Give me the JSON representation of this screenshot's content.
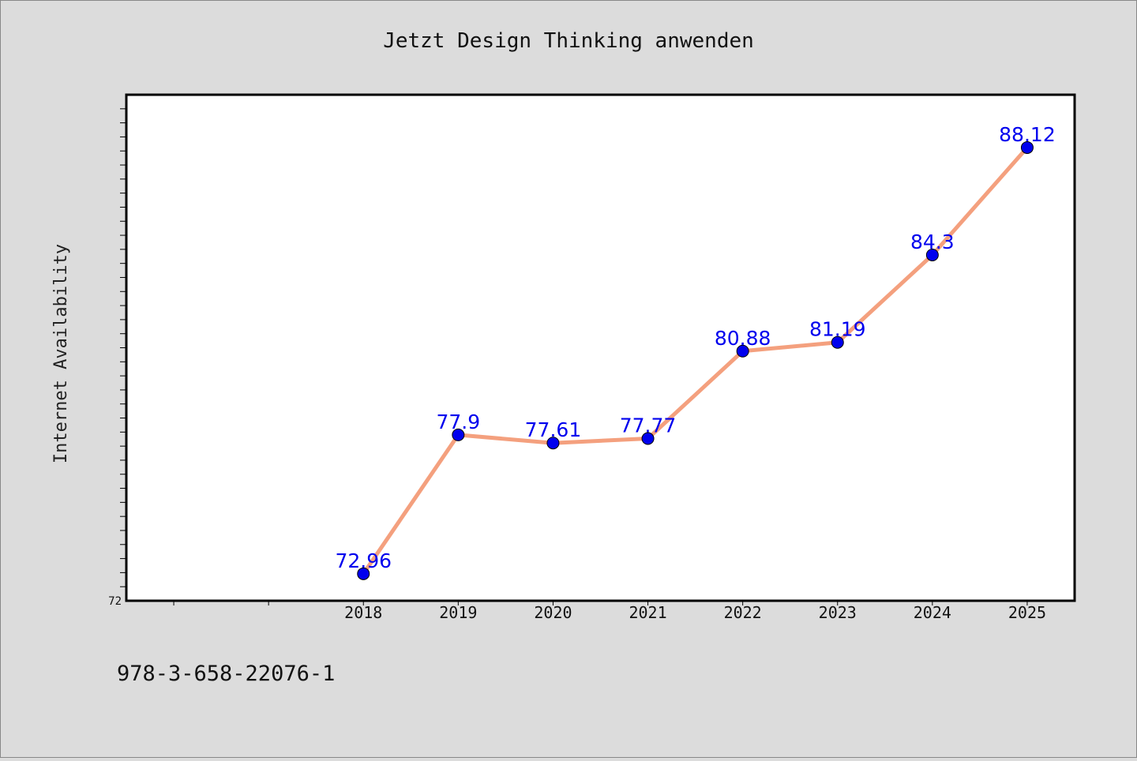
{
  "page": {
    "background": "#dcdcdc",
    "isbn": "978-3-658-22076-1"
  },
  "chart_data": {
    "type": "line",
    "title": "Jetzt Design Thinking anwenden",
    "xlabel": "",
    "ylabel": "Internet Availability",
    "x": [
      "2018",
      "2019",
      "2020",
      "2021",
      "2022",
      "2023",
      "2024",
      "2025"
    ],
    "series": [
      {
        "values": [
          72.96,
          77.9,
          77.61,
          77.77,
          80.88,
          81.19,
          84.3,
          88.12
        ],
        "labels": [
          "72.96",
          "77.9",
          "77.61",
          "77.77",
          "80.88",
          "81.19",
          "84.3",
          "88.12"
        ],
        "line_color": "#f4a07e",
        "marker_color": "#0000ee"
      }
    ],
    "xlim": [
      "2015.5",
      "2025.5"
    ],
    "ylim": [
      72,
      90
    ],
    "y_tick_labels": [
      "72"
    ],
    "grid": false,
    "legend": "none",
    "colors": {
      "plot_background": "#ffffff",
      "frame": "#000000",
      "label_color": "#0000ee"
    }
  }
}
